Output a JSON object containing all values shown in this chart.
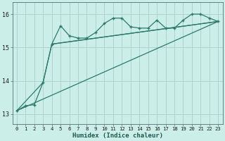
{
  "title": "",
  "xlabel": "Humidex (Indice chaleur)",
  "ylabel": "",
  "background_color": "#cceee8",
  "line_color": "#2d7a6a",
  "grid_color": "#aad4cc",
  "xlim": [
    -0.5,
    23.5
  ],
  "ylim": [
    12.7,
    16.35
  ],
  "yticks": [
    13,
    14,
    15,
    16
  ],
  "xticks": [
    0,
    1,
    2,
    3,
    4,
    5,
    6,
    7,
    8,
    9,
    10,
    11,
    12,
    13,
    14,
    15,
    16,
    17,
    18,
    19,
    20,
    21,
    22,
    23
  ],
  "series1_x": [
    0,
    1,
    2,
    3,
    4,
    5,
    6,
    7,
    8,
    9,
    10,
    11,
    12,
    13,
    14,
    15,
    16,
    17,
    18,
    19,
    20,
    21,
    22,
    23
  ],
  "series1_y": [
    13.1,
    13.25,
    13.28,
    13.95,
    15.1,
    15.65,
    15.35,
    15.28,
    15.28,
    15.45,
    15.72,
    15.88,
    15.88,
    15.62,
    15.58,
    15.58,
    15.82,
    15.58,
    15.58,
    15.82,
    16.0,
    16.0,
    15.88,
    15.78
  ],
  "series2_x": [
    0,
    3,
    4,
    23
  ],
  "series2_y": [
    13.1,
    13.95,
    15.1,
    15.78
  ],
  "series3_x": [
    0,
    23
  ],
  "series3_y": [
    13.1,
    15.78
  ],
  "series4_x": [
    4,
    23
  ],
  "series4_y": [
    15.1,
    15.78
  ]
}
